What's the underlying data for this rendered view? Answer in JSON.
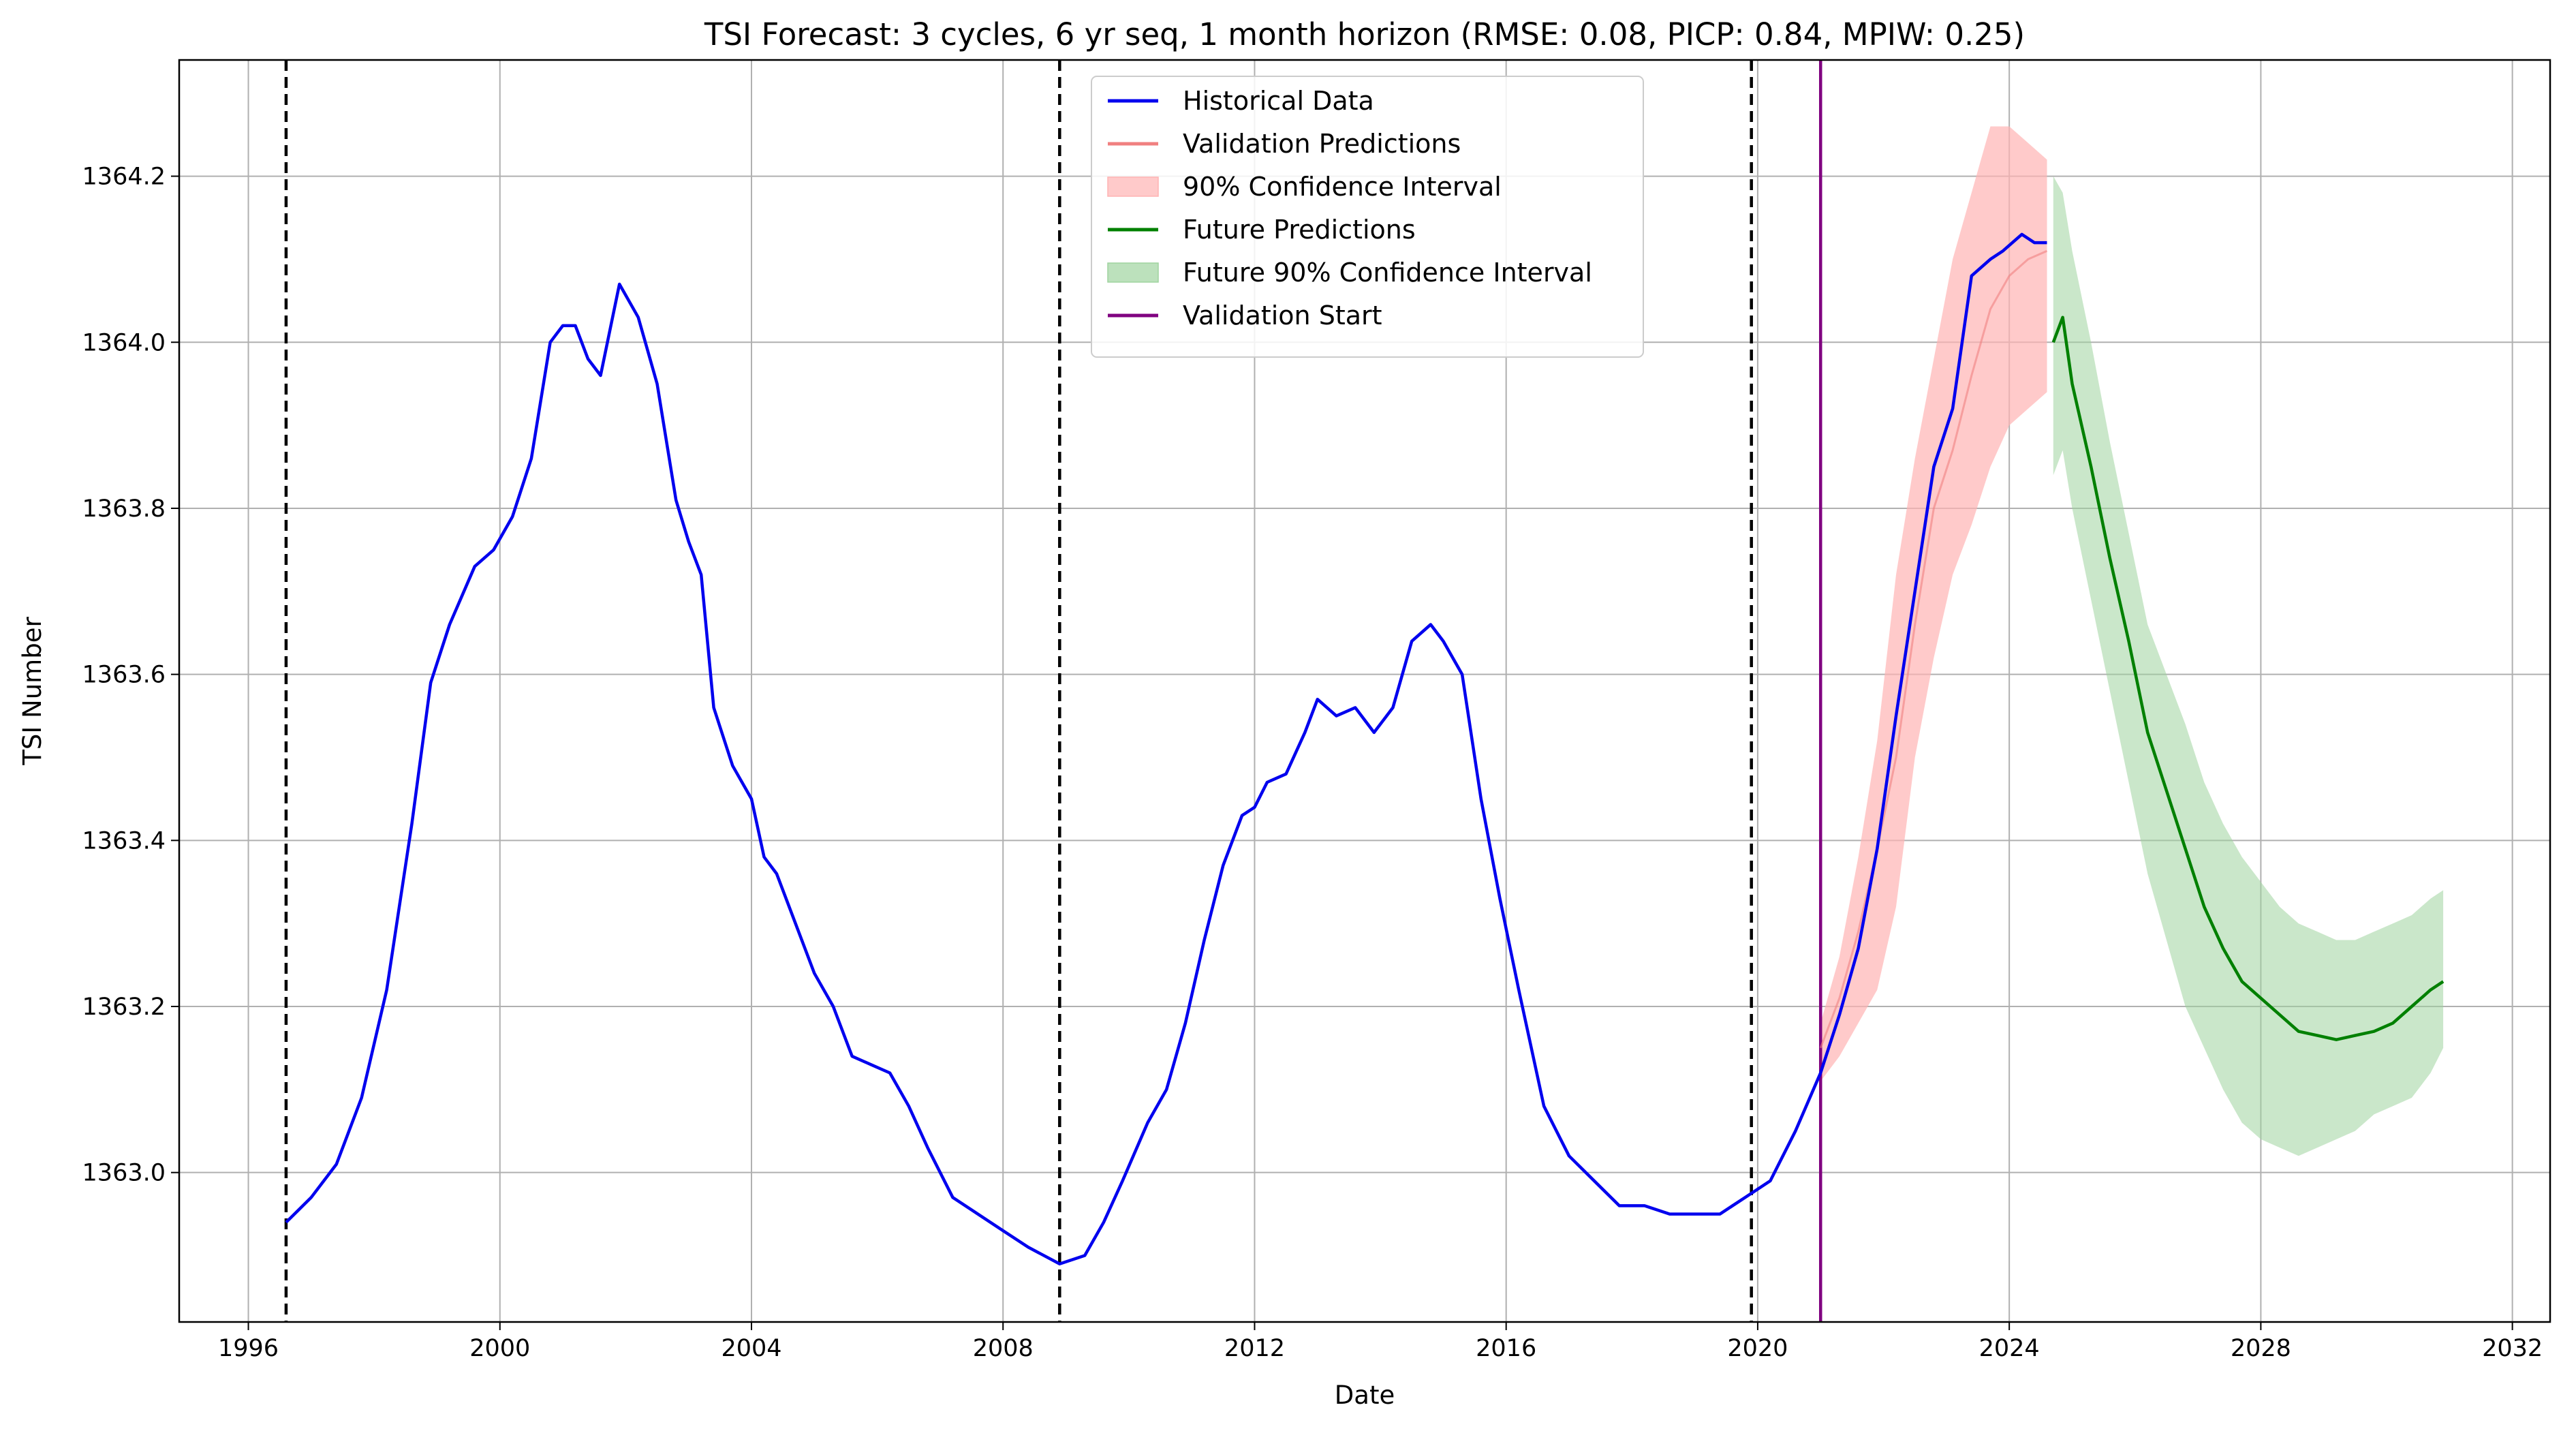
{
  "chart_data": {
    "type": "line",
    "title": "TSI Forecast: 3 cycles, 6 yr seq, 1 month horizon (RMSE: 0.08, PICP: 0.84, MPIW: 0.25)",
    "xlabel": "Date",
    "ylabel": "TSI Number",
    "xlim": [
      1994.9,
      2032.6
    ],
    "ylim": [
      1362.82,
      1364.34
    ],
    "x_ticks": [
      1996,
      2000,
      2004,
      2008,
      2012,
      2016,
      2020,
      2024,
      2028,
      2032
    ],
    "y_ticks": [
      1363.0,
      1363.2,
      1363.4,
      1363.6,
      1363.8,
      1364.0,
      1364.2
    ],
    "grid": true,
    "legend_position": "top-center",
    "cycle_boundaries": [
      1996.6,
      2008.9,
      2019.9
    ],
    "validation_start": 2021.0,
    "colors": {
      "historical": "#0000ee",
      "validation": "#f08080",
      "validation_ci": "#ffb3b3",
      "future": "#008000",
      "future_ci": "#9fd49f",
      "validation_start": "#800080",
      "cycle": "#000000"
    },
    "legend": [
      {
        "key": "historical",
        "label": "Historical Data",
        "kind": "line"
      },
      {
        "key": "validation",
        "label": "Validation Predictions",
        "kind": "line"
      },
      {
        "key": "validation_ci",
        "label": "90% Confidence Interval",
        "kind": "patch"
      },
      {
        "key": "future",
        "label": "Future Predictions",
        "kind": "line"
      },
      {
        "key": "future_ci",
        "label": "Future 90% Confidence Interval",
        "kind": "patch"
      },
      {
        "key": "validation_start",
        "label": "Validation Start",
        "kind": "line"
      }
    ],
    "series": [
      {
        "name": "Historical Data",
        "x": [
          1996.6,
          1997.0,
          1997.4,
          1997.8,
          1998.2,
          1998.6,
          1998.9,
          1999.2,
          1999.6,
          1999.9,
          2000.2,
          2000.5,
          2000.8,
          2001.0,
          2001.2,
          2001.4,
          2001.6,
          2001.9,
          2002.2,
          2002.5,
          2002.8,
          2003.0,
          2003.2,
          2003.4,
          2003.7,
          2004.0,
          2004.2,
          2004.4,
          2004.7,
          2005.0,
          2005.3,
          2005.6,
          2005.9,
          2006.2,
          2006.5,
          2006.8,
          2007.2,
          2007.6,
          2008.0,
          2008.4,
          2008.9,
          2009.3,
          2009.6,
          2009.9,
          2010.3,
          2010.6,
          2010.9,
          2011.2,
          2011.5,
          2011.8,
          2012.0,
          2012.2,
          2012.5,
          2012.8,
          2013.0,
          2013.3,
          2013.6,
          2013.9,
          2014.2,
          2014.5,
          2014.8,
          2015.0,
          2015.3,
          2015.6,
          2015.9,
          2016.2,
          2016.6,
          2017.0,
          2017.4,
          2017.8,
          2018.2,
          2018.6,
          2019.0,
          2019.4,
          2019.8,
          2020.2,
          2020.6,
          2021.0,
          2021.3,
          2021.6,
          2021.9,
          2022.2,
          2022.5,
          2022.8,
          2023.1,
          2023.4,
          2023.7,
          2023.9,
          2024.2,
          2024.4,
          2024.6
        ],
        "y": [
          1362.94,
          1362.97,
          1363.01,
          1363.09,
          1363.22,
          1363.42,
          1363.59,
          1363.66,
          1363.73,
          1363.75,
          1363.79,
          1363.86,
          1364.0,
          1364.02,
          1364.02,
          1363.98,
          1363.96,
          1364.07,
          1364.03,
          1363.95,
          1363.81,
          1363.76,
          1363.72,
          1363.56,
          1363.49,
          1363.45,
          1363.38,
          1363.36,
          1363.3,
          1363.24,
          1363.2,
          1363.14,
          1363.13,
          1363.12,
          1363.08,
          1363.03,
          1362.97,
          1362.95,
          1362.93,
          1362.91,
          1362.89,
          1362.9,
          1362.94,
          1362.99,
          1363.06,
          1363.1,
          1363.18,
          1363.28,
          1363.37,
          1363.43,
          1363.44,
          1363.47,
          1363.48,
          1363.53,
          1363.57,
          1363.55,
          1363.56,
          1363.53,
          1363.56,
          1363.64,
          1363.66,
          1363.64,
          1363.6,
          1363.45,
          1363.33,
          1363.22,
          1363.08,
          1363.02,
          1362.99,
          1362.96,
          1362.96,
          1362.95,
          1362.95,
          1362.95,
          1362.97,
          1362.99,
          1363.05,
          1363.12,
          1363.19,
          1363.27,
          1363.39,
          1363.55,
          1363.7,
          1363.85,
          1363.92,
          1364.08,
          1364.1,
          1364.11,
          1364.13,
          1364.12,
          1364.12
        ]
      },
      {
        "name": "Validation Predictions",
        "x": [
          2021.0,
          2021.3,
          2021.6,
          2021.9,
          2022.2,
          2022.5,
          2022.8,
          2023.1,
          2023.4,
          2023.7,
          2024.0,
          2024.3,
          2024.6
        ],
        "y": [
          1363.15,
          1363.21,
          1363.29,
          1363.39,
          1363.5,
          1363.66,
          1363.8,
          1363.87,
          1363.96,
          1364.04,
          1364.08,
          1364.1,
          1364.11
        ],
        "lower": [
          1363.11,
          1363.14,
          1363.18,
          1363.22,
          1363.32,
          1363.5,
          1363.62,
          1363.72,
          1363.78,
          1363.85,
          1363.9,
          1363.92,
          1363.94
        ],
        "upper": [
          1363.18,
          1363.26,
          1363.38,
          1363.52,
          1363.72,
          1363.86,
          1363.98,
          1364.1,
          1364.18,
          1364.26,
          1364.26,
          1364.24,
          1364.22
        ]
      },
      {
        "name": "Future Predictions",
        "x": [
          2024.7,
          2024.85,
          2025.0,
          2025.3,
          2025.6,
          2025.9,
          2026.2,
          2026.5,
          2026.8,
          2027.1,
          2027.4,
          2027.7,
          2028.0,
          2028.3,
          2028.6,
          2028.9,
          2029.2,
          2029.5,
          2029.8,
          2030.1,
          2030.4,
          2030.7,
          2030.9
        ],
        "y": [
          1364.0,
          1364.03,
          1363.95,
          1363.85,
          1363.74,
          1363.64,
          1363.53,
          1363.46,
          1363.39,
          1363.32,
          1363.27,
          1363.23,
          1363.21,
          1363.19,
          1363.17,
          1363.165,
          1363.16,
          1363.165,
          1363.17,
          1363.18,
          1363.2,
          1363.22,
          1363.23
        ],
        "lower": [
          1363.84,
          1363.87,
          1363.8,
          1363.69,
          1363.58,
          1363.47,
          1363.36,
          1363.28,
          1363.2,
          1363.15,
          1363.1,
          1363.06,
          1363.04,
          1363.03,
          1363.02,
          1363.03,
          1363.04,
          1363.05,
          1363.07,
          1363.08,
          1363.09,
          1363.12,
          1363.15
        ],
        "upper": [
          1364.2,
          1364.18,
          1364.11,
          1364.0,
          1363.88,
          1363.77,
          1363.66,
          1363.6,
          1363.54,
          1363.47,
          1363.42,
          1363.38,
          1363.35,
          1363.32,
          1363.3,
          1363.29,
          1363.28,
          1363.28,
          1363.29,
          1363.3,
          1363.31,
          1363.33,
          1363.34
        ]
      }
    ]
  }
}
